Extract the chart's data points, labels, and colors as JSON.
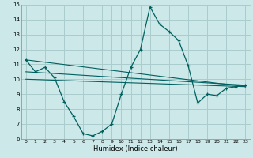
{
  "xlabel": "Humidex (Indice chaleur)",
  "bg_color": "#cce8e8",
  "grid_color": "#aacccc",
  "line_color": "#006060",
  "xlim": [
    -0.5,
    23.5
  ],
  "ylim": [
    6,
    15
  ],
  "xticks": [
    0,
    1,
    2,
    3,
    4,
    5,
    6,
    7,
    8,
    9,
    10,
    11,
    12,
    13,
    14,
    15,
    16,
    17,
    18,
    19,
    20,
    21,
    22,
    23
  ],
  "yticks": [
    6,
    7,
    8,
    9,
    10,
    11,
    12,
    13,
    14,
    15
  ],
  "series": [
    [
      0,
      11.3
    ],
    [
      1,
      10.5
    ],
    [
      2,
      10.8
    ],
    [
      3,
      10.1
    ],
    [
      4,
      8.5
    ],
    [
      5,
      7.5
    ],
    [
      6,
      6.35
    ],
    [
      7,
      6.2
    ],
    [
      8,
      6.5
    ],
    [
      9,
      7.0
    ],
    [
      10,
      9.0
    ],
    [
      11,
      10.8
    ],
    [
      12,
      12.0
    ],
    [
      13,
      14.85
    ],
    [
      14,
      13.7
    ],
    [
      15,
      13.2
    ],
    [
      16,
      12.6
    ],
    [
      17,
      10.9
    ],
    [
      18,
      8.4
    ],
    [
      19,
      9.0
    ],
    [
      20,
      8.9
    ],
    [
      21,
      9.4
    ],
    [
      22,
      9.5
    ],
    [
      23,
      9.6
    ]
  ],
  "line2": [
    [
      0,
      11.3
    ],
    [
      23,
      9.5
    ]
  ],
  "line3": [
    [
      0,
      10.5
    ],
    [
      23,
      9.6
    ]
  ],
  "line4": [
    [
      0,
      10.0
    ],
    [
      23,
      9.5
    ]
  ]
}
